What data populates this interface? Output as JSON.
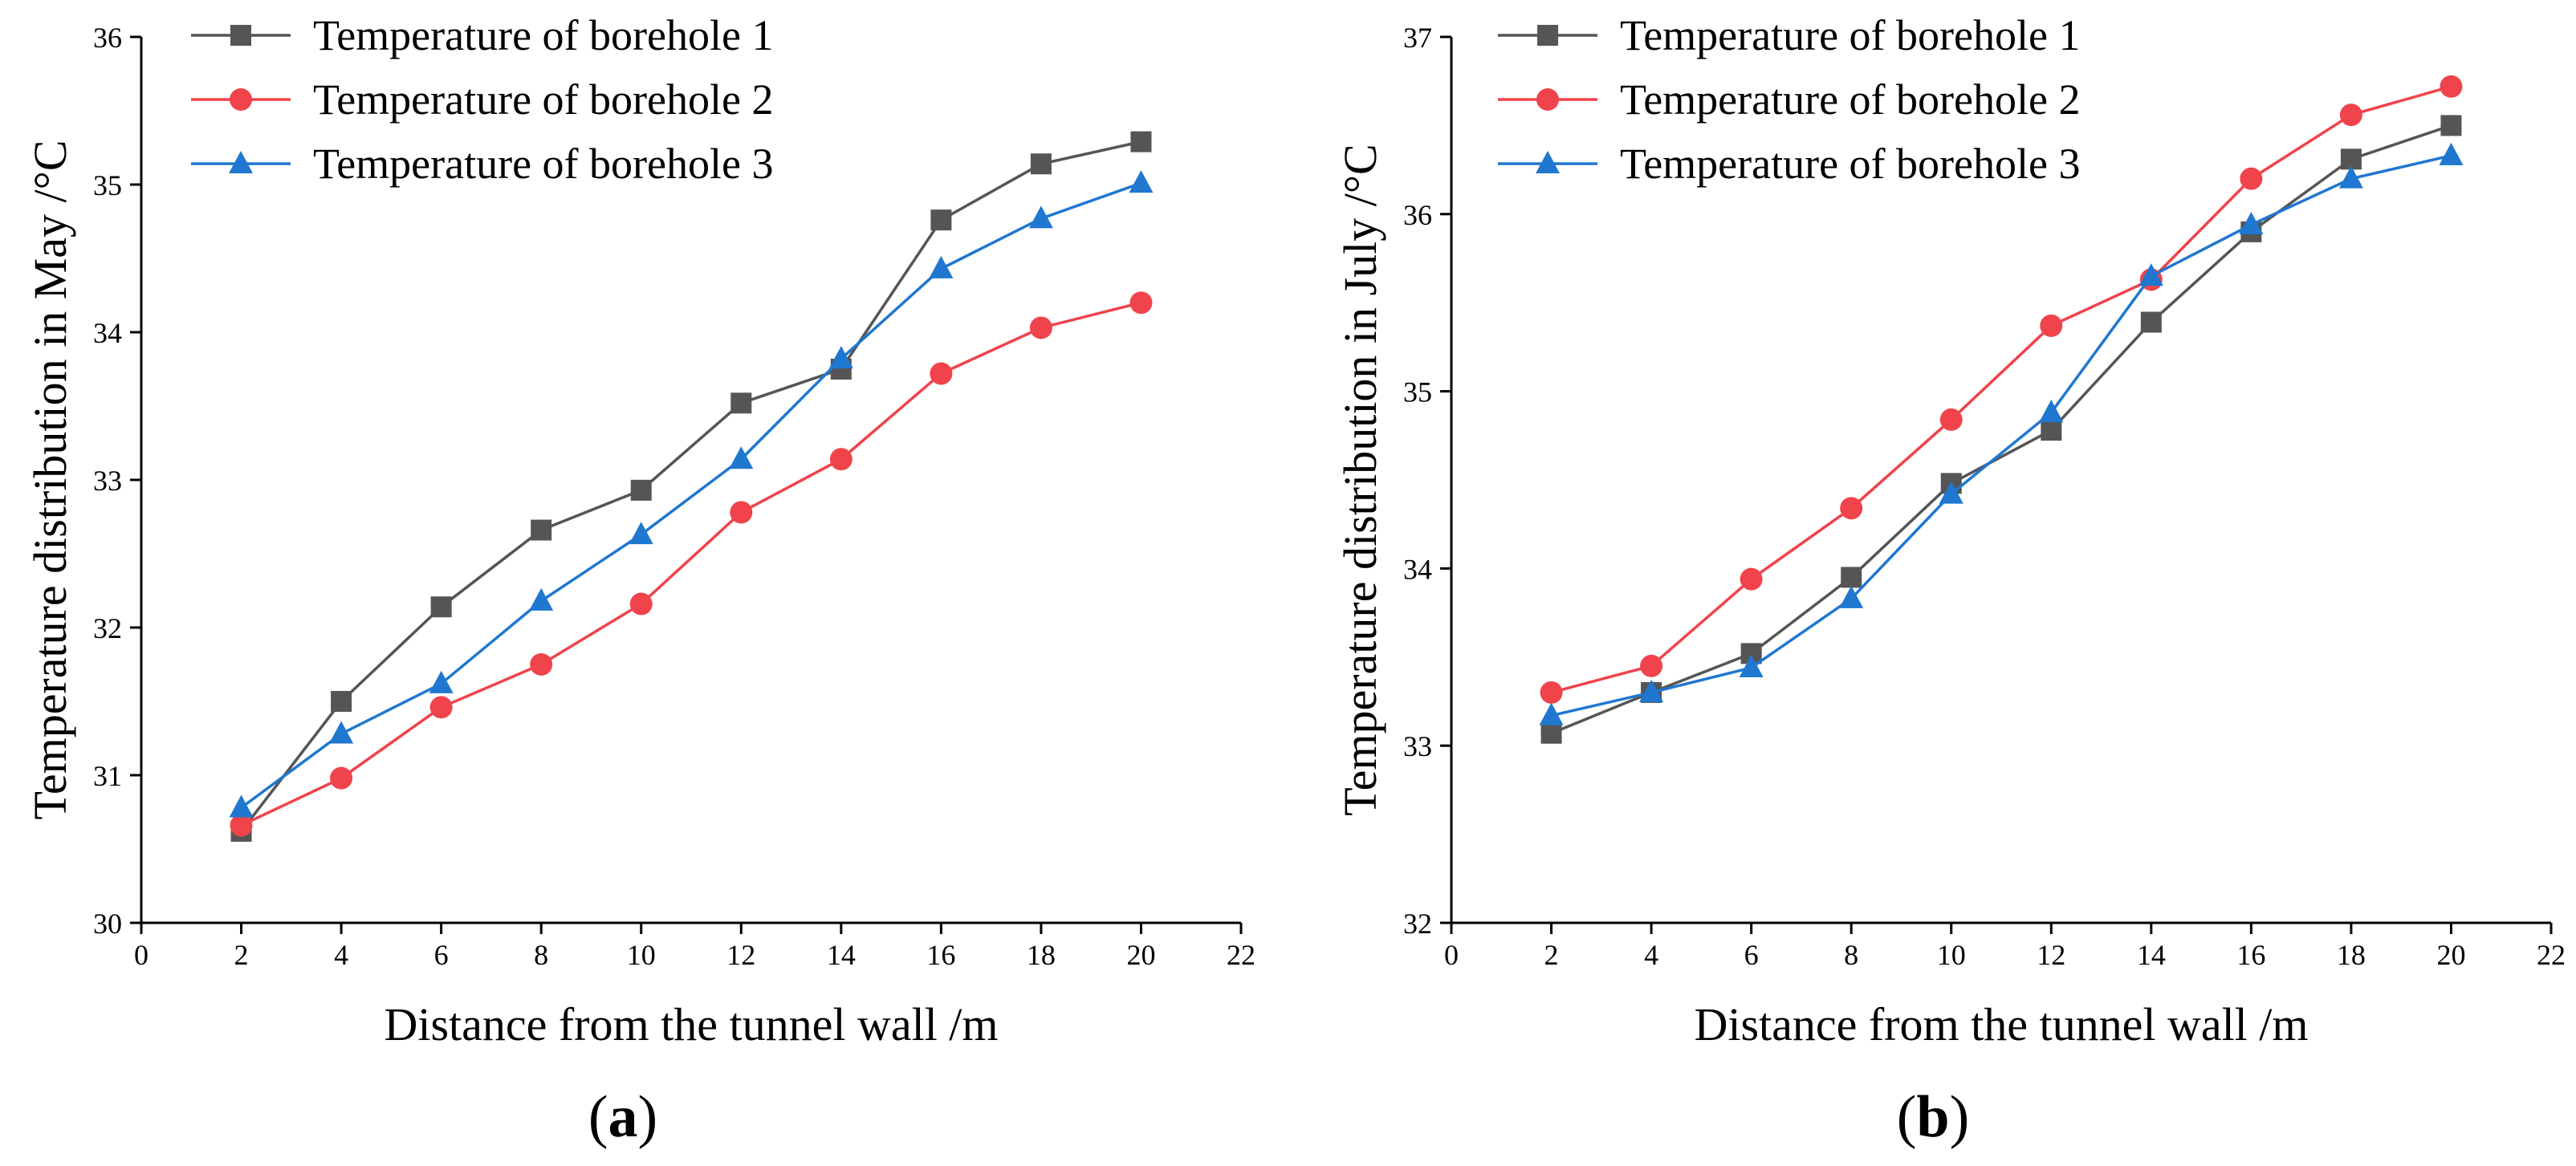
{
  "chart_data": [
    {
      "type": "line",
      "panel": "a",
      "title": "",
      "xlabel": "Distance from the tunnel wall /m",
      "ylabel": "Temperature distribution in May /°C",
      "xlim": [
        0,
        22
      ],
      "ylim": [
        30,
        36
      ],
      "xticks": [
        0,
        2,
        4,
        6,
        8,
        10,
        12,
        14,
        16,
        18,
        20,
        22
      ],
      "yticks": [
        30,
        31,
        32,
        33,
        34,
        35,
        36
      ],
      "x": [
        2,
        4,
        6,
        8,
        10,
        12,
        14,
        16,
        18,
        20
      ],
      "legend_position": "top-left",
      "series": [
        {
          "name": "Temperature of borehole 1",
          "color": "#555555",
          "marker": "square",
          "values": [
            30.62,
            31.5,
            32.14,
            32.66,
            32.93,
            33.52,
            33.75,
            34.76,
            35.14,
            35.29
          ]
        },
        {
          "name": "Temperature of borehole 2",
          "color": "#f0434b",
          "marker": "circle",
          "values": [
            30.66,
            30.98,
            31.46,
            31.75,
            32.16,
            32.78,
            33.14,
            33.72,
            34.03,
            34.2
          ]
        },
        {
          "name": "Temperature of borehole 3",
          "color": "#1f77d0",
          "marker": "triangle",
          "values": [
            30.78,
            31.28,
            31.62,
            32.18,
            32.63,
            33.14,
            33.82,
            34.43,
            34.77,
            35.01
          ]
        }
      ]
    },
    {
      "type": "line",
      "panel": "b",
      "title": "",
      "xlabel": "Distance from the tunnel wall /m",
      "ylabel": "Temperature distribution in July /°C",
      "xlim": [
        0,
        22
      ],
      "ylim": [
        32,
        37
      ],
      "xticks": [
        0,
        2,
        4,
        6,
        8,
        10,
        12,
        14,
        16,
        18,
        20,
        22
      ],
      "yticks": [
        32,
        33,
        34,
        35,
        36,
        37
      ],
      "x": [
        2,
        4,
        6,
        8,
        10,
        12,
        14,
        16,
        18,
        20
      ],
      "legend_position": "top-left",
      "series": [
        {
          "name": "Temperature of borehole 1",
          "color": "#555555",
          "marker": "square",
          "values": [
            33.07,
            33.3,
            33.52,
            33.95,
            34.48,
            34.78,
            35.39,
            35.9,
            36.31,
            36.5
          ]
        },
        {
          "name": "Temperature of borehole 2",
          "color": "#f0434b",
          "marker": "circle",
          "values": [
            33.3,
            33.45,
            33.94,
            34.34,
            34.84,
            35.37,
            35.63,
            36.2,
            36.56,
            36.72
          ]
        },
        {
          "name": "Temperature of borehole 3",
          "color": "#1f77d0",
          "marker": "triangle",
          "values": [
            33.17,
            33.3,
            33.44,
            33.83,
            34.42,
            34.88,
            35.65,
            35.94,
            36.2,
            36.33
          ]
        }
      ]
    }
  ],
  "panel_labels": [
    "a",
    "b"
  ]
}
